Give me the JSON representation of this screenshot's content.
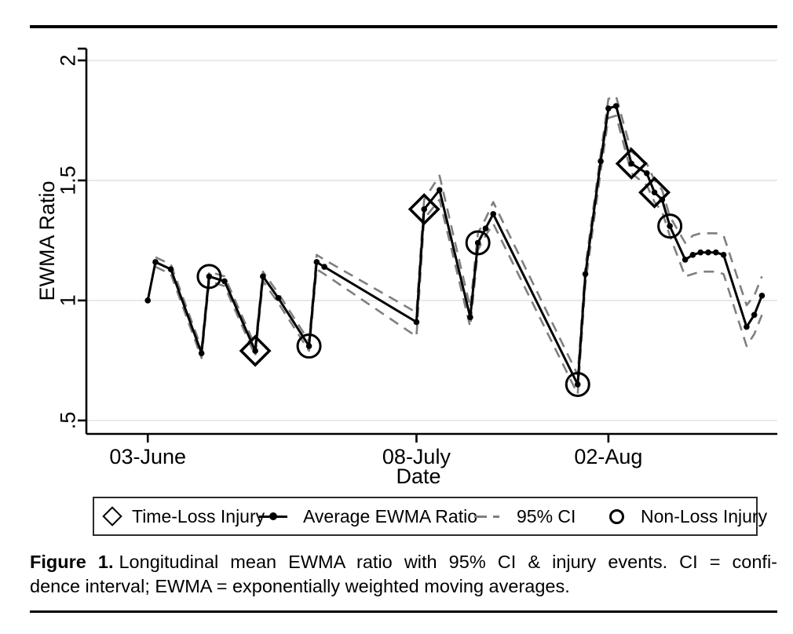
{
  "figure": {
    "caption": {
      "label": "Figure 1.",
      "line1": "Longitudinal mean EWMA ratio with 95% CI & injury events. CI = confi-",
      "line2": "dence interval; EWMA = exponentially weighted moving averages."
    }
  },
  "legend": {
    "items": [
      {
        "marker": "diamond-outline",
        "label": "Time-Loss Injury"
      },
      {
        "marker": "line-dot",
        "label": "Average EWMA Ratio"
      },
      {
        "marker": "gray-dashes",
        "label": "95% CI"
      },
      {
        "marker": "circle-outline",
        "label": "Non-Loss Injury"
      }
    ]
  },
  "colors": {
    "mean_line": "#000000",
    "ci_line": "#7f7f7f",
    "grid": "#e3e3e3",
    "axis": "#000000",
    "background": "#ffffff"
  },
  "chart_data": {
    "type": "line",
    "title": "",
    "xlabel": "Date",
    "ylabel": "EWMA Ratio",
    "x_unit": "days since 03-June",
    "xlim": [
      -8,
      82
    ],
    "ylim": [
      0.444,
      2.049
    ],
    "grid": "horizontal",
    "legend_position": "bottom",
    "x_ticks": [
      {
        "pos": 0,
        "label": "03-June"
      },
      {
        "pos": 35,
        "label": "08-July"
      },
      {
        "pos": 60,
        "label": "02-Aug"
      }
    ],
    "y_ticks": [
      {
        "pos": 0.5,
        "label": ".5"
      },
      {
        "pos": 1,
        "label": "1"
      },
      {
        "pos": 1.5,
        "label": "1.5"
      },
      {
        "pos": 2,
        "label": "2"
      }
    ],
    "series_names": [
      "Average EWMA Ratio",
      "95% CI upper",
      "95% CI lower"
    ],
    "points": [
      {
        "d": 0,
        "v": 1.0,
        "lo": null,
        "hi": null,
        "event": null
      },
      {
        "d": 1,
        "v": 1.16,
        "lo": 1.14,
        "hi": 1.18,
        "event": null
      },
      {
        "d": 3,
        "v": 1.13,
        "lo": 1.11,
        "hi": 1.15,
        "event": null
      },
      {
        "d": 7,
        "v": 0.78,
        "lo": 0.76,
        "hi": 0.8,
        "event": null
      },
      {
        "d": 8,
        "v": 1.1,
        "lo": 1.08,
        "hi": 1.12,
        "event": "non-loss"
      },
      {
        "d": 10,
        "v": 1.08,
        "lo": 1.06,
        "hi": 1.1,
        "event": null
      },
      {
        "d": 14,
        "v": 0.79,
        "lo": 0.77,
        "hi": 0.81,
        "event": "time-loss"
      },
      {
        "d": 15,
        "v": 1.1,
        "lo": 1.08,
        "hi": 1.12,
        "event": null
      },
      {
        "d": 17,
        "v": 1.01,
        "lo": 0.99,
        "hi": 1.03,
        "event": null
      },
      {
        "d": 21,
        "v": 0.81,
        "lo": 0.79,
        "hi": 0.83,
        "event": "non-loss"
      },
      {
        "d": 22,
        "v": 1.16,
        "lo": 1.13,
        "hi": 1.19,
        "event": null
      },
      {
        "d": 23,
        "v": 1.14,
        "lo": 1.11,
        "hi": 1.17,
        "event": null
      },
      {
        "d": 35,
        "v": 0.91,
        "lo": 0.85,
        "hi": 0.95,
        "event": null
      },
      {
        "d": 36,
        "v": 1.38,
        "lo": 1.34,
        "hi": 1.42,
        "event": "time-loss"
      },
      {
        "d": 38,
        "v": 1.46,
        "lo": 1.42,
        "hi": 1.52,
        "event": null
      },
      {
        "d": 42,
        "v": 0.93,
        "lo": 0.89,
        "hi": 0.97,
        "event": null
      },
      {
        "d": 43,
        "v": 1.24,
        "lo": 1.21,
        "hi": 1.28,
        "event": "non-loss"
      },
      {
        "d": 44,
        "v": 1.3,
        "lo": 1.27,
        "hi": 1.34,
        "event": null
      },
      {
        "d": 45,
        "v": 1.36,
        "lo": 1.32,
        "hi": 1.41,
        "event": null
      },
      {
        "d": 56,
        "v": 0.65,
        "lo": 0.61,
        "hi": 0.69,
        "event": "non-loss"
      },
      {
        "d": 57,
        "v": 1.11,
        "lo": 1.07,
        "hi": 1.14,
        "event": null
      },
      {
        "d": 59,
        "v": 1.58,
        "lo": 1.54,
        "hi": 1.61,
        "event": null
      },
      {
        "d": 60,
        "v": 1.8,
        "lo": 1.76,
        "hi": 1.84,
        "event": null
      },
      {
        "d": 61,
        "v": 1.81,
        "lo": 1.77,
        "hi": 1.85,
        "event": null
      },
      {
        "d": 63,
        "v": 1.57,
        "lo": 1.53,
        "hi": 1.62,
        "event": "time-loss"
      },
      {
        "d": 65,
        "v": 1.53,
        "lo": 1.48,
        "hi": 1.57,
        "event": null
      },
      {
        "d": 66,
        "v": 1.45,
        "lo": 1.41,
        "hi": 1.5,
        "event": "time-loss"
      },
      {
        "d": 67,
        "v": 1.42,
        "lo": 1.37,
        "hi": 1.46,
        "event": null
      },
      {
        "d": 68,
        "v": 1.31,
        "lo": 1.27,
        "hi": 1.35,
        "event": "non-loss"
      },
      {
        "d": 70,
        "v": 1.17,
        "lo": 1.1,
        "hi": 1.24,
        "event": null
      },
      {
        "d": 71,
        "v": 1.19,
        "lo": 1.11,
        "hi": 1.27,
        "event": null
      },
      {
        "d": 72,
        "v": 1.2,
        "lo": 1.12,
        "hi": 1.28,
        "event": null
      },
      {
        "d": 73,
        "v": 1.2,
        "lo": 1.12,
        "hi": 1.28,
        "event": null
      },
      {
        "d": 74,
        "v": 1.2,
        "lo": 1.12,
        "hi": 1.28,
        "event": null
      },
      {
        "d": 75,
        "v": 1.19,
        "lo": 1.11,
        "hi": 1.27,
        "event": null
      },
      {
        "d": 78,
        "v": 0.89,
        "lo": 0.81,
        "hi": 0.98,
        "event": null
      },
      {
        "d": 79,
        "v": 0.94,
        "lo": 0.86,
        "hi": 1.02,
        "event": null
      },
      {
        "d": 80,
        "v": 1.02,
        "lo": 0.94,
        "hi": 1.1,
        "event": null
      }
    ],
    "events": {
      "time_loss_days": [
        14,
        36,
        63,
        66
      ],
      "non_loss_days": [
        8,
        21,
        43,
        56,
        68
      ]
    }
  }
}
